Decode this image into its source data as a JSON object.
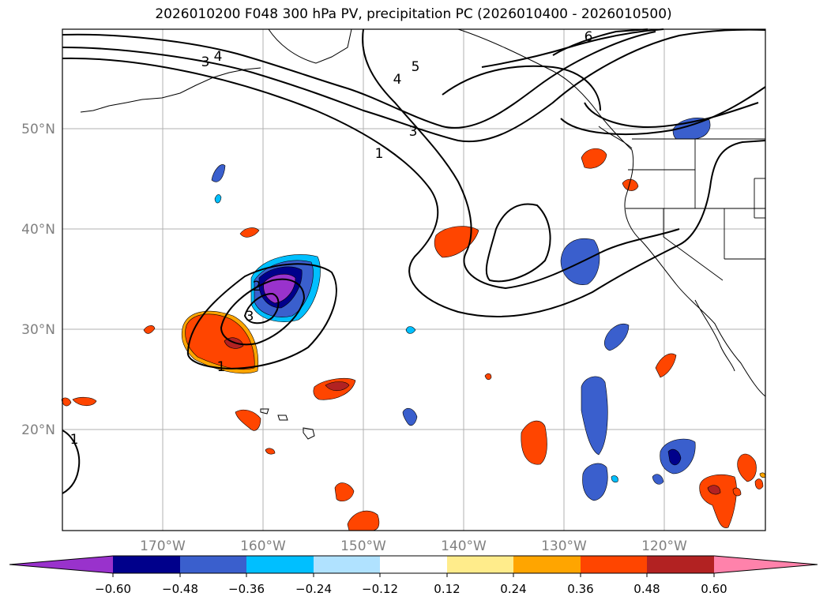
{
  "title": "2026010200 F048 300 hPa PV, precipitation PC (2026010400 - 2026010500)",
  "map": {
    "lon_ticks": [
      "170°W",
      "160°W",
      "150°W",
      "140°W",
      "130°W",
      "120°W"
    ],
    "lat_ticks": [
      "50°N",
      "40°N",
      "30°N",
      "20°N"
    ],
    "contour_labels": [
      "3",
      "4",
      "1",
      "3",
      "5",
      "4",
      "6",
      "2",
      "3",
      "1",
      "1"
    ]
  },
  "colorbar": {
    "ticks": [
      "−0.60",
      "−0.48",
      "−0.36",
      "−0.24",
      "−0.12",
      "0.12",
      "0.24",
      "0.36",
      "0.48",
      "0.60"
    ],
    "colors": [
      "#9932cc",
      "#00008b",
      "#3a5fcd",
      "#00bfff",
      "#b0e2ff",
      "#ffffff",
      "#ffec8b",
      "#ffa500",
      "#ff4500",
      "#b22222",
      "#ff82ab"
    ]
  }
}
